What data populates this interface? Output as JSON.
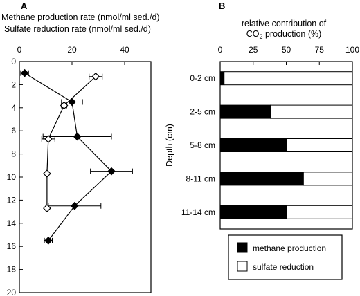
{
  "chart_data": [
    {
      "panel": "A",
      "type": "scatter",
      "title_line1": "Methane production rate (nmol/ml sed./d)",
      "title_line2": "Sulfate reduction rate (nmol/ml sed./d)",
      "xlim": [
        0,
        50
      ],
      "x_ticks": [
        "0",
        "20",
        "40"
      ],
      "x_tick_values": [
        0,
        20,
        40
      ],
      "ylim": [
        0,
        20
      ],
      "y_ticks": [
        "0",
        "2",
        "4",
        "6",
        "8",
        "10",
        "12",
        "14",
        "16",
        "18",
        "20"
      ],
      "y_tick_values": [
        0,
        2,
        4,
        6,
        8,
        10,
        12,
        14,
        16,
        18,
        20
      ],
      "y_inverted": true,
      "series": [
        {
          "marker": "filled-diamond",
          "points": [
            {
              "x": 2,
              "y": 1,
              "xerr": 1.5
            },
            {
              "x": 20,
              "y": 3.5,
              "xerr": 4
            },
            {
              "x": 22,
              "y": 6.5,
              "xerr": 13
            },
            {
              "x": 35,
              "y": 9.5,
              "xerr": 8
            },
            {
              "x": 21,
              "y": 12.5,
              "xerr": 10
            },
            {
              "x": 11,
              "y": 15.5,
              "xerr": 1.5
            }
          ]
        },
        {
          "marker": "open-diamond",
          "points": [
            {
              "x": 29,
              "y": 1.3,
              "xerr": 2.5
            },
            {
              "x": 17,
              "y": 3.8,
              "xerr": 1
            },
            {
              "x": 11,
              "y": 6.7,
              "xerr": 2.5
            },
            {
              "x": 10.5,
              "y": 9.7,
              "xerr": 0.5
            },
            {
              "x": 10.5,
              "y": 12.7,
              "xerr": 0.5
            }
          ]
        }
      ]
    },
    {
      "panel": "B",
      "type": "bar",
      "orientation": "horizontal",
      "stacked": true,
      "title_line1": "relative contribution of",
      "title_line2_pre": "CO",
      "title_line2_sub": "2",
      "title_line2_post": " production (%)",
      "ylabel": "Depth (cm)",
      "xlim": [
        0,
        100
      ],
      "x_ticks": [
        "0",
        "25",
        "50",
        "75",
        "100"
      ],
      "x_tick_values": [
        0,
        25,
        50,
        75,
        100
      ],
      "categories": [
        "0-2 cm",
        "2-5 cm",
        "5-8 cm",
        "8-11 cm",
        "11-14 cm"
      ],
      "series": [
        {
          "name": "methane production",
          "color": "#000000",
          "values": [
            3,
            38,
            50,
            63,
            50
          ]
        },
        {
          "name": "sulfate reduction",
          "color": "#ffffff",
          "values": [
            97,
            62,
            50,
            37,
            50
          ]
        }
      ],
      "legend": [
        "methane production",
        "sulfate reduction"
      ],
      "legend_position": "bottom"
    }
  ]
}
